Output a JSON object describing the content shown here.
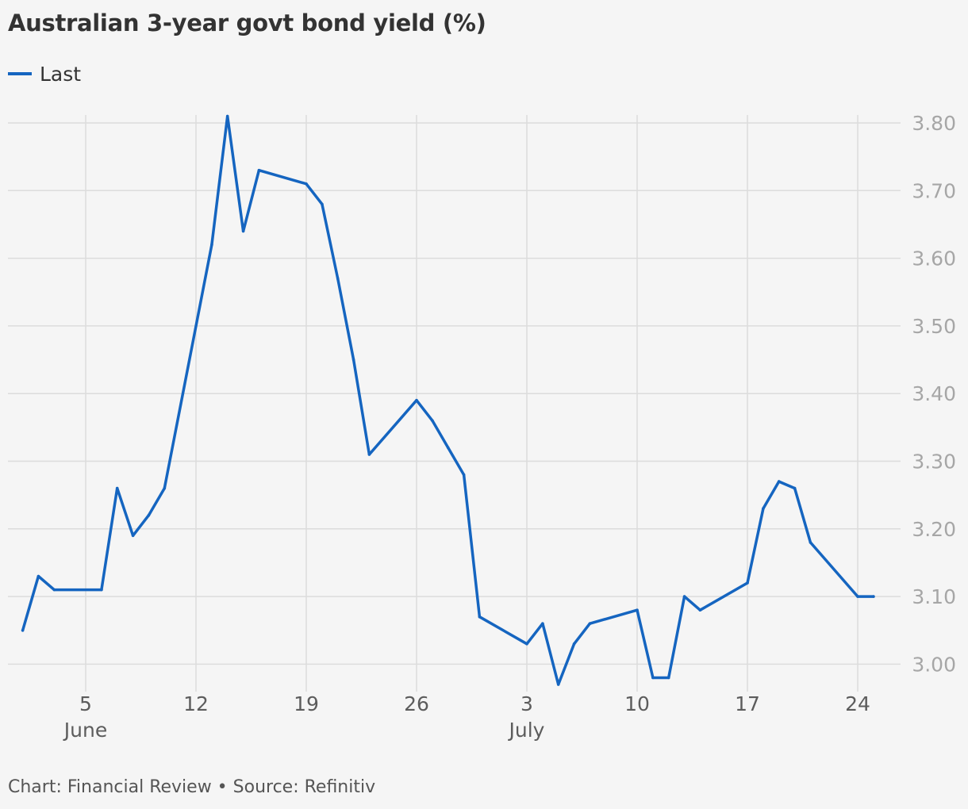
{
  "header": {
    "title": "Australian 3-year govt bond yield (%)"
  },
  "legend": [
    {
      "label": "Last",
      "color": "#1565c0"
    }
  ],
  "footer": {
    "source": "Chart: Financial Review • Source: Refinitiv"
  },
  "chart_data": {
    "type": "line",
    "title": "Australian 3-year govt bond yield (%)",
    "xlabel": "",
    "ylabel": "",
    "ylim": [
      2.97,
      3.83
    ],
    "xlim": [
      "2023-05-30",
      "2023-07-27"
    ],
    "grid": true,
    "legend_position": "top-left",
    "yticks": [
      "3.00",
      "3.10",
      "3.20",
      "3.30",
      "3.40",
      "3.50",
      "3.60",
      "3.70",
      "3.80"
    ],
    "xticks": [
      {
        "date": "2023-06-05",
        "label": "5",
        "month": "June"
      },
      {
        "date": "2023-06-12",
        "label": "12",
        "month": ""
      },
      {
        "date": "2023-06-19",
        "label": "19",
        "month": ""
      },
      {
        "date": "2023-06-26",
        "label": "26",
        "month": ""
      },
      {
        "date": "2023-07-03",
        "label": "3",
        "month": "July"
      },
      {
        "date": "2023-07-10",
        "label": "10",
        "month": ""
      },
      {
        "date": "2023-07-17",
        "label": "17",
        "month": ""
      },
      {
        "date": "2023-07-24",
        "label": "24",
        "month": ""
      }
    ],
    "series": [
      {
        "name": "Last",
        "color": "#1565c0",
        "points": [
          [
            "2023-06-01",
            3.05
          ],
          [
            "2023-06-02",
            3.13
          ],
          [
            "2023-06-03",
            3.11
          ],
          [
            "2023-06-06",
            3.11
          ],
          [
            "2023-06-07",
            3.26
          ],
          [
            "2023-06-08",
            3.19
          ],
          [
            "2023-06-09",
            3.22
          ],
          [
            "2023-06-10",
            3.26
          ],
          [
            "2023-06-13",
            3.62
          ],
          [
            "2023-06-14",
            3.81
          ],
          [
            "2023-06-15",
            3.64
          ],
          [
            "2023-06-16",
            3.73
          ],
          [
            "2023-06-19",
            3.71
          ],
          [
            "2023-06-20",
            3.68
          ],
          [
            "2023-06-21",
            3.57
          ],
          [
            "2023-06-22",
            3.45
          ],
          [
            "2023-06-23",
            3.31
          ],
          [
            "2023-06-26",
            3.39
          ],
          [
            "2023-06-27",
            3.36
          ],
          [
            "2023-06-28",
            3.32
          ],
          [
            "2023-06-29",
            3.28
          ],
          [
            "2023-06-30",
            3.07
          ],
          [
            "2023-07-03",
            3.03
          ],
          [
            "2023-07-04",
            3.06
          ],
          [
            "2023-07-05",
            2.97
          ],
          [
            "2023-07-06",
            3.03
          ],
          [
            "2023-07-07",
            3.06
          ],
          [
            "2023-07-10",
            3.08
          ],
          [
            "2023-07-11",
            2.98
          ],
          [
            "2023-07-12",
            2.98
          ],
          [
            "2023-07-13",
            3.1
          ],
          [
            "2023-07-14",
            3.08
          ],
          [
            "2023-07-17",
            3.12
          ],
          [
            "2023-07-18",
            3.23
          ],
          [
            "2023-07-19",
            3.27
          ],
          [
            "2023-07-20",
            3.26
          ],
          [
            "2023-07-21",
            3.18
          ],
          [
            "2023-07-24",
            3.1
          ],
          [
            "2023-07-25",
            3.1
          ]
        ]
      }
    ]
  }
}
